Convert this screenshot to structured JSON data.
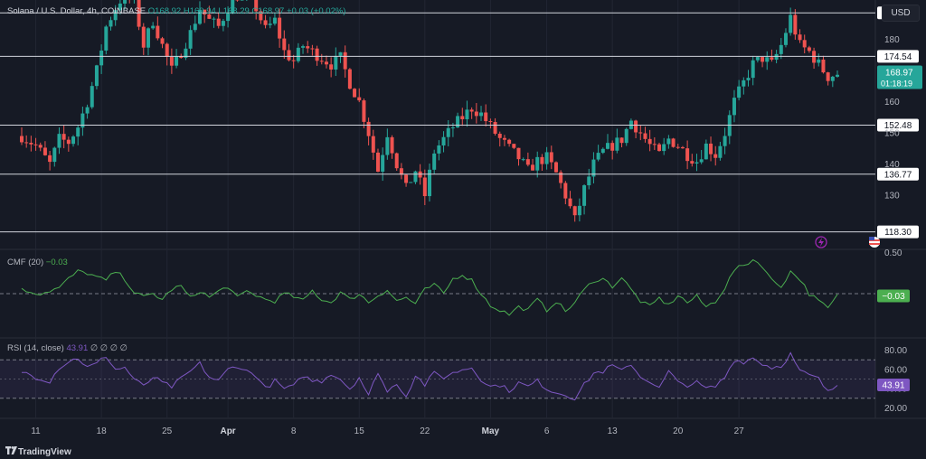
{
  "header": {
    "symbol": "Solana / U.S. Dollar, 4h, COINBASE",
    "open": "O168.92",
    "high": "H169.94",
    "low": "L168.29",
    "close": "C168.97",
    "change": "+0.03 (+0.02%)"
  },
  "currency_button": "USD",
  "branding": "TradingView",
  "colors": {
    "bg": "#161a25",
    "up": "#26a69a",
    "down": "#ef5350",
    "grid": "#222633",
    "cmf": "#4caf50",
    "rsi": "#7e57c2",
    "level": "#d1d4dc"
  },
  "chart_data": [
    {
      "type": "candlestick",
      "ylim": [
        115,
        192
      ],
      "price_ticks": [
        130,
        140,
        150,
        160,
        180
      ],
      "horizontal_levels": [
        "188.45",
        "174.54",
        "152.48",
        "136.77",
        "118.30"
      ],
      "current_price": "168.97",
      "countdown": "01:18:19",
      "x_labels": [
        "11",
        "18",
        "25",
        "Apr",
        "8",
        "15",
        "22",
        "May",
        "6",
        "13",
        "20",
        "27"
      ],
      "anchors": [
        [
          0,
          149
        ],
        [
          3,
          146
        ],
        [
          6,
          140
        ],
        [
          8,
          148
        ],
        [
          10,
          147
        ],
        [
          12,
          152
        ],
        [
          14,
          160
        ],
        [
          16,
          170
        ],
        [
          18,
          184
        ],
        [
          20,
          190
        ],
        [
          22,
          195
        ],
        [
          24,
          192
        ],
        [
          26,
          178
        ],
        [
          28,
          186
        ],
        [
          30,
          178
        ],
        [
          32,
          170
        ],
        [
          34,
          176
        ],
        [
          36,
          182
        ],
        [
          38,
          190
        ],
        [
          40,
          186
        ],
        [
          42,
          184
        ],
        [
          44,
          190
        ],
        [
          46,
          194
        ],
        [
          48,
          195
        ],
        [
          50,
          190
        ],
        [
          52,
          183
        ],
        [
          54,
          186
        ],
        [
          56,
          176
        ],
        [
          58,
          173
        ],
        [
          60,
          178
        ],
        [
          62,
          176
        ],
        [
          64,
          174
        ],
        [
          66,
          172
        ],
        [
          68,
          174
        ],
        [
          70,
          166
        ],
        [
          72,
          160
        ],
        [
          74,
          150
        ],
        [
          76,
          138
        ],
        [
          78,
          150
        ],
        [
          80,
          140
        ],
        [
          82,
          132
        ],
        [
          84,
          138
        ],
        [
          86,
          130
        ],
        [
          88,
          144
        ],
        [
          90,
          148
        ],
        [
          92,
          152
        ],
        [
          94,
          155
        ],
        [
          96,
          158
        ],
        [
          98,
          156
        ],
        [
          100,
          152
        ],
        [
          102,
          148
        ],
        [
          104,
          145
        ],
        [
          106,
          142
        ],
        [
          108,
          138
        ],
        [
          110,
          141
        ],
        [
          112,
          142
        ],
        [
          114,
          137
        ],
        [
          116,
          130
        ],
        [
          118,
          122
        ],
        [
          120,
          132
        ],
        [
          122,
          140
        ],
        [
          124,
          144
        ],
        [
          126,
          146
        ],
        [
          128,
          148
        ],
        [
          130,
          154
        ],
        [
          132,
          150
        ],
        [
          134,
          146
        ],
        [
          136,
          143
        ],
        [
          138,
          148
        ],
        [
          140,
          146
        ],
        [
          142,
          143
        ],
        [
          144,
          141
        ],
        [
          146,
          146
        ],
        [
          148,
          143
        ],
        [
          150,
          150
        ],
        [
          152,
          160
        ],
        [
          154,
          166
        ],
        [
          156,
          172
        ],
        [
          158,
          174
        ],
        [
          160,
          172
        ],
        [
          162,
          178
        ],
        [
          164,
          187
        ],
        [
          166,
          178
        ],
        [
          168,
          176
        ],
        [
          170,
          172
        ],
        [
          172,
          168
        ],
        [
          174,
          169
        ]
      ]
    },
    {
      "type": "line",
      "title": "CMF (20)",
      "last_value": "−0.03",
      "axis_label": "0.50",
      "ylim": [
        -0.55,
        0.55
      ],
      "anchors": [
        [
          0,
          0.05
        ],
        [
          4,
          0.0
        ],
        [
          8,
          0.08
        ],
        [
          10,
          0.2
        ],
        [
          12,
          0.3
        ],
        [
          14,
          0.28
        ],
        [
          16,
          0.22
        ],
        [
          18,
          0.18
        ],
        [
          20,
          0.3
        ],
        [
          22,
          0.2
        ],
        [
          24,
          0.02
        ],
        [
          26,
          -0.05
        ],
        [
          28,
          0.0
        ],
        [
          30,
          -0.08
        ],
        [
          32,
          0.06
        ],
        [
          34,
          0.1
        ],
        [
          36,
          -0.06
        ],
        [
          38,
          0.04
        ],
        [
          40,
          -0.05
        ],
        [
          42,
          0.03
        ],
        [
          44,
          0.1
        ],
        [
          46,
          -0.06
        ],
        [
          48,
          0.03
        ],
        [
          50,
          -0.02
        ],
        [
          52,
          -0.08
        ],
        [
          54,
          -0.1
        ],
        [
          56,
          0.0
        ],
        [
          58,
          -0.04
        ],
        [
          60,
          -0.1
        ],
        [
          62,
          0.04
        ],
        [
          64,
          -0.08
        ],
        [
          66,
          -0.12
        ],
        [
          68,
          0.02
        ],
        [
          70,
          -0.08
        ],
        [
          72,
          0.0
        ],
        [
          74,
          -0.12
        ],
        [
          76,
          -0.02
        ],
        [
          78,
          0.05
        ],
        [
          80,
          -0.1
        ],
        [
          82,
          -0.05
        ],
        [
          84,
          -0.14
        ],
        [
          86,
          0.05
        ],
        [
          88,
          0.12
        ],
        [
          90,
          0.0
        ],
        [
          92,
          0.2
        ],
        [
          94,
          0.26
        ],
        [
          96,
          0.18
        ],
        [
          98,
          0.0
        ],
        [
          100,
          -0.16
        ],
        [
          102,
          -0.22
        ],
        [
          104,
          -0.28
        ],
        [
          106,
          -0.18
        ],
        [
          108,
          -0.22
        ],
        [
          110,
          -0.08
        ],
        [
          112,
          -0.22
        ],
        [
          114,
          -0.1
        ],
        [
          116,
          -0.24
        ],
        [
          118,
          -0.12
        ],
        [
          120,
          0.05
        ],
        [
          122,
          0.18
        ],
        [
          124,
          0.2
        ],
        [
          126,
          0.1
        ],
        [
          128,
          0.22
        ],
        [
          130,
          0.05
        ],
        [
          132,
          -0.1
        ],
        [
          134,
          -0.18
        ],
        [
          136,
          -0.06
        ],
        [
          138,
          -0.16
        ],
        [
          140,
          -0.02
        ],
        [
          142,
          -0.12
        ],
        [
          144,
          -0.04
        ],
        [
          146,
          -0.18
        ],
        [
          148,
          -0.1
        ],
        [
          150,
          0.08
        ],
        [
          152,
          0.32
        ],
        [
          154,
          0.38
        ],
        [
          156,
          0.46
        ],
        [
          158,
          0.38
        ],
        [
          160,
          0.18
        ],
        [
          162,
          0.1
        ],
        [
          164,
          0.3
        ],
        [
          166,
          0.2
        ],
        [
          168,
          0.0
        ],
        [
          170,
          -0.1
        ],
        [
          172,
          -0.2
        ],
        [
          174,
          -0.03
        ]
      ]
    },
    {
      "type": "line",
      "title": "RSI (14, close)",
      "last_value": "43.91",
      "flags": "∅ ∅ ∅ ∅",
      "ylim": [
        10,
        90
      ],
      "ticks": [
        "80.00",
        "60.00",
        "40.00",
        "20.00"
      ],
      "band": [
        30,
        70
      ],
      "anchors": [
        [
          0,
          58
        ],
        [
          3,
          52
        ],
        [
          6,
          48
        ],
        [
          8,
          62
        ],
        [
          10,
          68
        ],
        [
          12,
          72
        ],
        [
          14,
          62
        ],
        [
          16,
          66
        ],
        [
          18,
          74
        ],
        [
          20,
          60
        ],
        [
          22,
          62
        ],
        [
          24,
          50
        ],
        [
          26,
          42
        ],
        [
          28,
          52
        ],
        [
          30,
          46
        ],
        [
          32,
          42
        ],
        [
          34,
          50
        ],
        [
          36,
          58
        ],
        [
          38,
          66
        ],
        [
          40,
          52
        ],
        [
          42,
          48
        ],
        [
          44,
          60
        ],
        [
          46,
          64
        ],
        [
          48,
          58
        ],
        [
          50,
          54
        ],
        [
          52,
          40
        ],
        [
          54,
          48
        ],
        [
          56,
          40
        ],
        [
          58,
          42
        ],
        [
          60,
          54
        ],
        [
          62,
          48
        ],
        [
          64,
          48
        ],
        [
          66,
          56
        ],
        [
          68,
          50
        ],
        [
          70,
          40
        ],
        [
          72,
          52
        ],
        [
          74,
          32
        ],
        [
          76,
          58
        ],
        [
          78,
          36
        ],
        [
          80,
          46
        ],
        [
          82,
          32
        ],
        [
          84,
          54
        ],
        [
          86,
          44
        ],
        [
          88,
          56
        ],
        [
          90,
          52
        ],
        [
          92,
          56
        ],
        [
          94,
          60
        ],
        [
          96,
          62
        ],
        [
          98,
          50
        ],
        [
          100,
          42
        ],
        [
          102,
          44
        ],
        [
          104,
          38
        ],
        [
          106,
          46
        ],
        [
          108,
          42
        ],
        [
          110,
          48
        ],
        [
          112,
          40
        ],
        [
          114,
          36
        ],
        [
          116,
          34
        ],
        [
          118,
          30
        ],
        [
          120,
          44
        ],
        [
          122,
          56
        ],
        [
          124,
          58
        ],
        [
          126,
          64
        ],
        [
          128,
          58
        ],
        [
          130,
          66
        ],
        [
          132,
          52
        ],
        [
          134,
          48
        ],
        [
          136,
          40
        ],
        [
          138,
          58
        ],
        [
          140,
          46
        ],
        [
          142,
          44
        ],
        [
          144,
          46
        ],
        [
          146,
          40
        ],
        [
          148,
          42
        ],
        [
          150,
          52
        ],
        [
          152,
          70
        ],
        [
          154,
          68
        ],
        [
          156,
          72
        ],
        [
          158,
          66
        ],
        [
          160,
          62
        ],
        [
          162,
          64
        ],
        [
          164,
          76
        ],
        [
          166,
          58
        ],
        [
          168,
          54
        ],
        [
          170,
          50
        ],
        [
          172,
          36
        ],
        [
          174,
          44
        ]
      ]
    }
  ]
}
